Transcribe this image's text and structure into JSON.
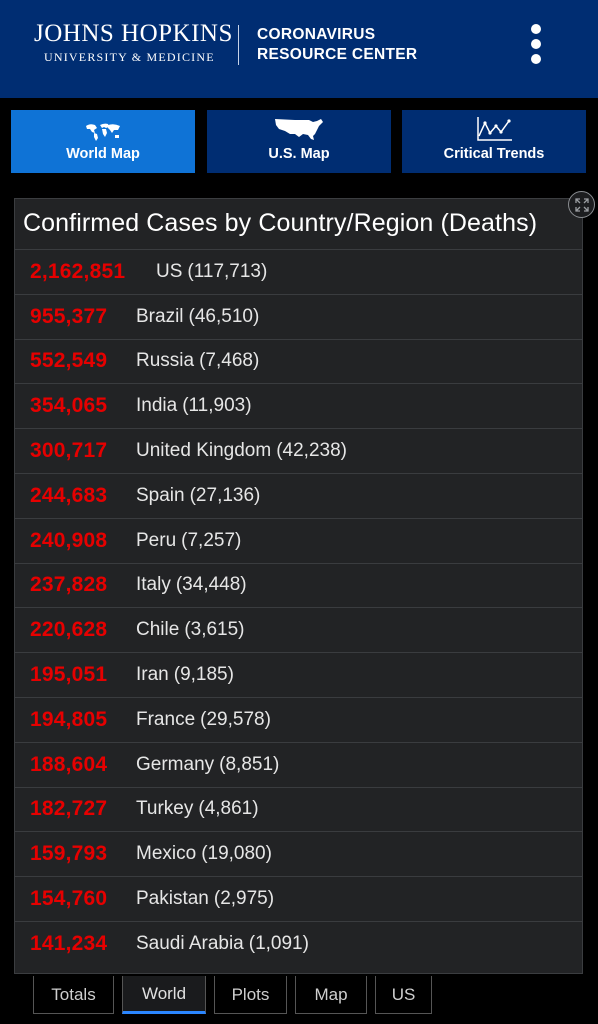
{
  "header": {
    "logo_line1": "JOHNS HOPKINS",
    "logo_line2": "UNIVERSITY & MEDICINE",
    "title_line1": "CORONAVIRUS",
    "title_line2": "RESOURCE CENTER",
    "menu_icon": "kebab-menu-icon"
  },
  "tabs": [
    {
      "label": "World Map",
      "icon": "world-map-icon",
      "active": true
    },
    {
      "label": "U.S. Map",
      "icon": "us-map-icon",
      "active": false
    },
    {
      "label": "Critical Trends",
      "icon": "trend-chart-icon",
      "active": false
    }
  ],
  "panel": {
    "title": "Confirmed Cases by Country/Region (Deaths)",
    "expand_icon": "expand-icon",
    "rows": [
      {
        "cases": "2,162,851",
        "country": "US",
        "deaths": "(117,713)"
      },
      {
        "cases": "955,377",
        "country": "Brazil",
        "deaths": "(46,510)"
      },
      {
        "cases": "552,549",
        "country": "Russia",
        "deaths": "(7,468)"
      },
      {
        "cases": "354,065",
        "country": "India",
        "deaths": "(11,903)"
      },
      {
        "cases": "300,717",
        "country": "United Kingdom",
        "deaths": "(42,238)"
      },
      {
        "cases": "244,683",
        "country": "Spain",
        "deaths": "(27,136)"
      },
      {
        "cases": "240,908",
        "country": "Peru",
        "deaths": "(7,257)"
      },
      {
        "cases": "237,828",
        "country": "Italy",
        "deaths": "(34,448)"
      },
      {
        "cases": "220,628",
        "country": "Chile",
        "deaths": "(3,615)"
      },
      {
        "cases": "195,051",
        "country": "Iran",
        "deaths": "(9,185)"
      },
      {
        "cases": "194,805",
        "country": "France",
        "deaths": "(29,578)"
      },
      {
        "cases": "188,604",
        "country": "Germany",
        "deaths": "(8,851)"
      },
      {
        "cases": "182,727",
        "country": "Turkey",
        "deaths": "(4,861)"
      },
      {
        "cases": "159,793",
        "country": "Mexico",
        "deaths": "(19,080)"
      },
      {
        "cases": "154,760",
        "country": "Pakistan",
        "deaths": "(2,975)"
      },
      {
        "cases": "141,234",
        "country": "Saudi Arabia",
        "deaths": "(1,091)"
      }
    ]
  },
  "bottom_tabs": [
    {
      "label": "Totals",
      "active": false
    },
    {
      "label": "World",
      "active": true
    },
    {
      "label": "Plots",
      "active": false
    },
    {
      "label": "Map",
      "active": false
    },
    {
      "label": "US",
      "active": false
    }
  ],
  "colors": {
    "header_bg": "#002d72",
    "active_tab": "#0f73d6",
    "cases_red": "#e60000",
    "active_underline": "#2b86ff"
  }
}
